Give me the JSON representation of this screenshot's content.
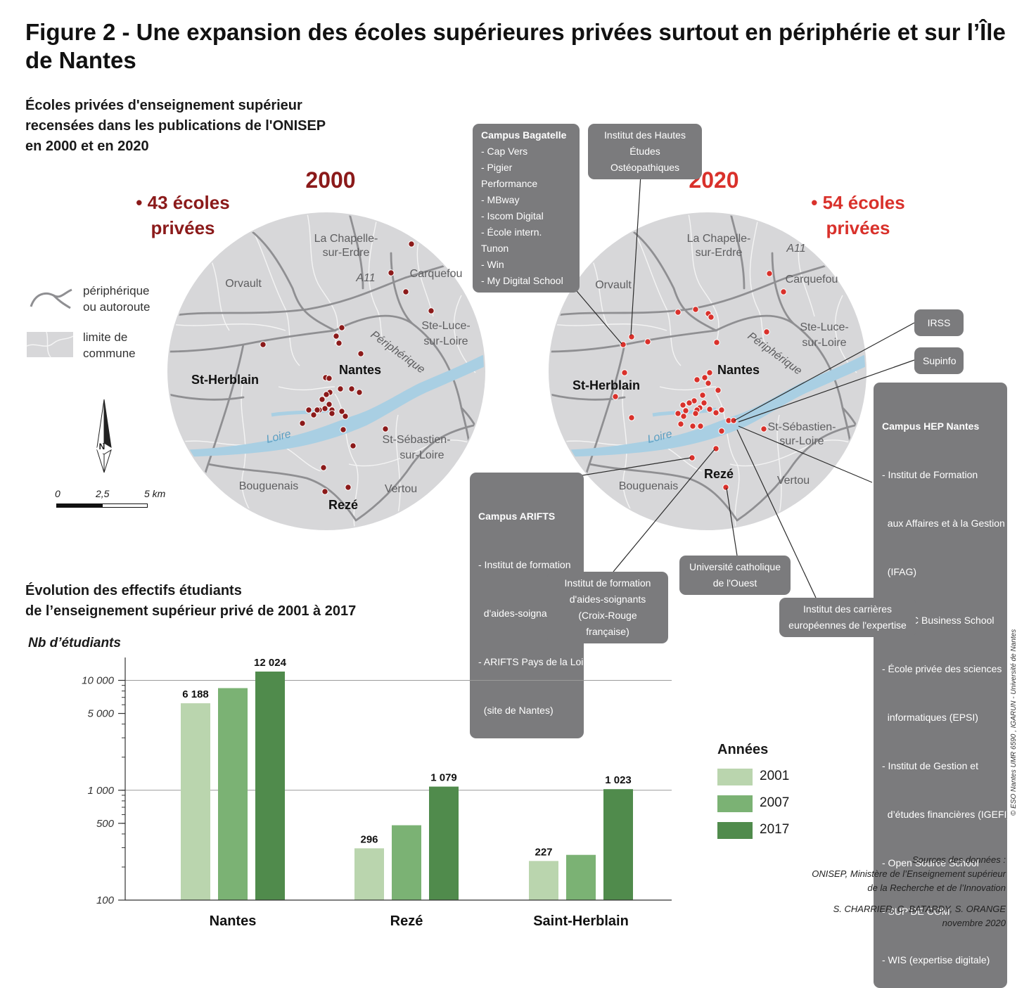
{
  "title": "Figure 2 - Une expansion des écoles supérieures privées surtout en périphérie et sur l’Île de Nantes",
  "maps": {
    "subtitle_lines": [
      "Écoles privées d'enseignement supérieur",
      "recensées dans les publications de l'ONISEP",
      "en 2000 et en 2020"
    ],
    "year_2000": "2000",
    "year_2020": "2020",
    "count_2000_line1": "• 43 écoles",
    "count_2000_line2": "privées",
    "count_2020_line1": "• 54 écoles",
    "count_2020_line2": "privées",
    "color_2000": "#8b1a1a",
    "color_2020": "#d9312b",
    "place_labels": {
      "chapelle": [
        "La Chapelle-",
        "sur-Erdre"
      ],
      "orvault": "Orvault",
      "carquefou": "Carquefou",
      "a11": "A11",
      "ste_luce": [
        "Ste-Luce-",
        "sur-Loire"
      ],
      "peripherique": "Périphérique",
      "nantes": "Nantes",
      "st_herblain": "St-Herblain",
      "st_sebastien": [
        "St-Sébastien-",
        "sur-Loire"
      ],
      "loire": "Loire",
      "bouguenais": "Bouguenais",
      "vertou": "Vertou",
      "reze": "Rezé"
    }
  },
  "legend": {
    "peripherique_line1": "périphérique",
    "peripherique_line2": "ou autoroute",
    "commune_line1": "limite de",
    "commune_line2": "commune",
    "north": "N",
    "scale_0": "0",
    "scale_mid": "2,5",
    "scale_end": "5 km"
  },
  "callouts": {
    "bagatelle": {
      "heading": "Campus Bagatelle",
      "items": [
        "- Cap Vers",
        "- Pigier Performance",
        "- MBway",
        "- Iscom Digital",
        "- École intern. Tunon",
        "- Win",
        "- My Digital School"
      ]
    },
    "osteo": [
      "Institut des Hautes",
      "Études Ostéopathiques"
    ],
    "irss": "IRSS",
    "supinfo": "Supinfo",
    "hep": {
      "heading": "Campus HEP Nantes",
      "items": [
        "- Institut de Formation",
        "  aux Affaires et à la Gestion",
        "  (IFAG)",
        "- IDRAC Business School",
        "- École privée des sciences",
        "  informatiques (EPSI)",
        "- Institut de Gestion et",
        "  d’études financières (IGEFI)",
        "- Open Source School",
        "- SUP’DE COM",
        "- WIS (expertise digitale)"
      ]
    },
    "arifts": {
      "heading": "Campus ARIFTS",
      "items": [
        "- Institut de formation",
        "  d'aides-soignants",
        "- ARIFTS Pays de la Loire",
        "  (site de Nantes)"
      ]
    },
    "croix_rouge": [
      "Institut de formation",
      "d'aides-soignants",
      "(Croix-Rouge française)"
    ],
    "uco": [
      "Université catholique",
      "de l'Ouest"
    ],
    "carrieres": [
      "Institut des carrières",
      "européennes de l'expertise"
    ]
  },
  "chart_title_lines": [
    "Évolution des effectifs étudiants",
    "de l’enseignement supérieur privé de 2001 à 2017"
  ],
  "chart_data": {
    "type": "bar",
    "ylabel": "Nb d’étudiants",
    "yscale": "log",
    "ylim": [
      100,
      15000
    ],
    "yticks": [
      100,
      500,
      1000,
      5000,
      10000
    ],
    "ytick_labels": [
      "100",
      "500",
      "1 000",
      "5 000",
      "10 000"
    ],
    "gridlines": [
      100,
      1000,
      10000
    ],
    "categories": [
      "Nantes",
      "Rezé",
      "Saint-Herblain"
    ],
    "legend_title": "Années",
    "legend_position": "right",
    "series": [
      {
        "name": "2001",
        "color": "#bad5ae",
        "values": [
          6188,
          296,
          227
        ],
        "labels": [
          "6 188",
          "296",
          "227"
        ]
      },
      {
        "name": "2007",
        "color": "#7bb274",
        "values": [
          8500,
          480,
          258
        ],
        "labels": [
          "",
          "",
          ""
        ]
      },
      {
        "name": "2017",
        "color": "#508b4c",
        "values": [
          12024,
          1079,
          1023
        ],
        "labels": [
          "12 024",
          "1 079",
          "1 023"
        ]
      }
    ]
  },
  "sources": {
    "line1": "Sources des données :",
    "line2": "ONISEP, Ministère de l’Enseignement supérieur",
    "line3": "de la Recherche et de l’Innovation",
    "authors": "S. CHARRIER, C. BATARDY, S. ORANGE",
    "date": "novembre 2020",
    "copyright": "© ESO Nantes UMR 6590 , IGARUN - Université de Nantes"
  }
}
